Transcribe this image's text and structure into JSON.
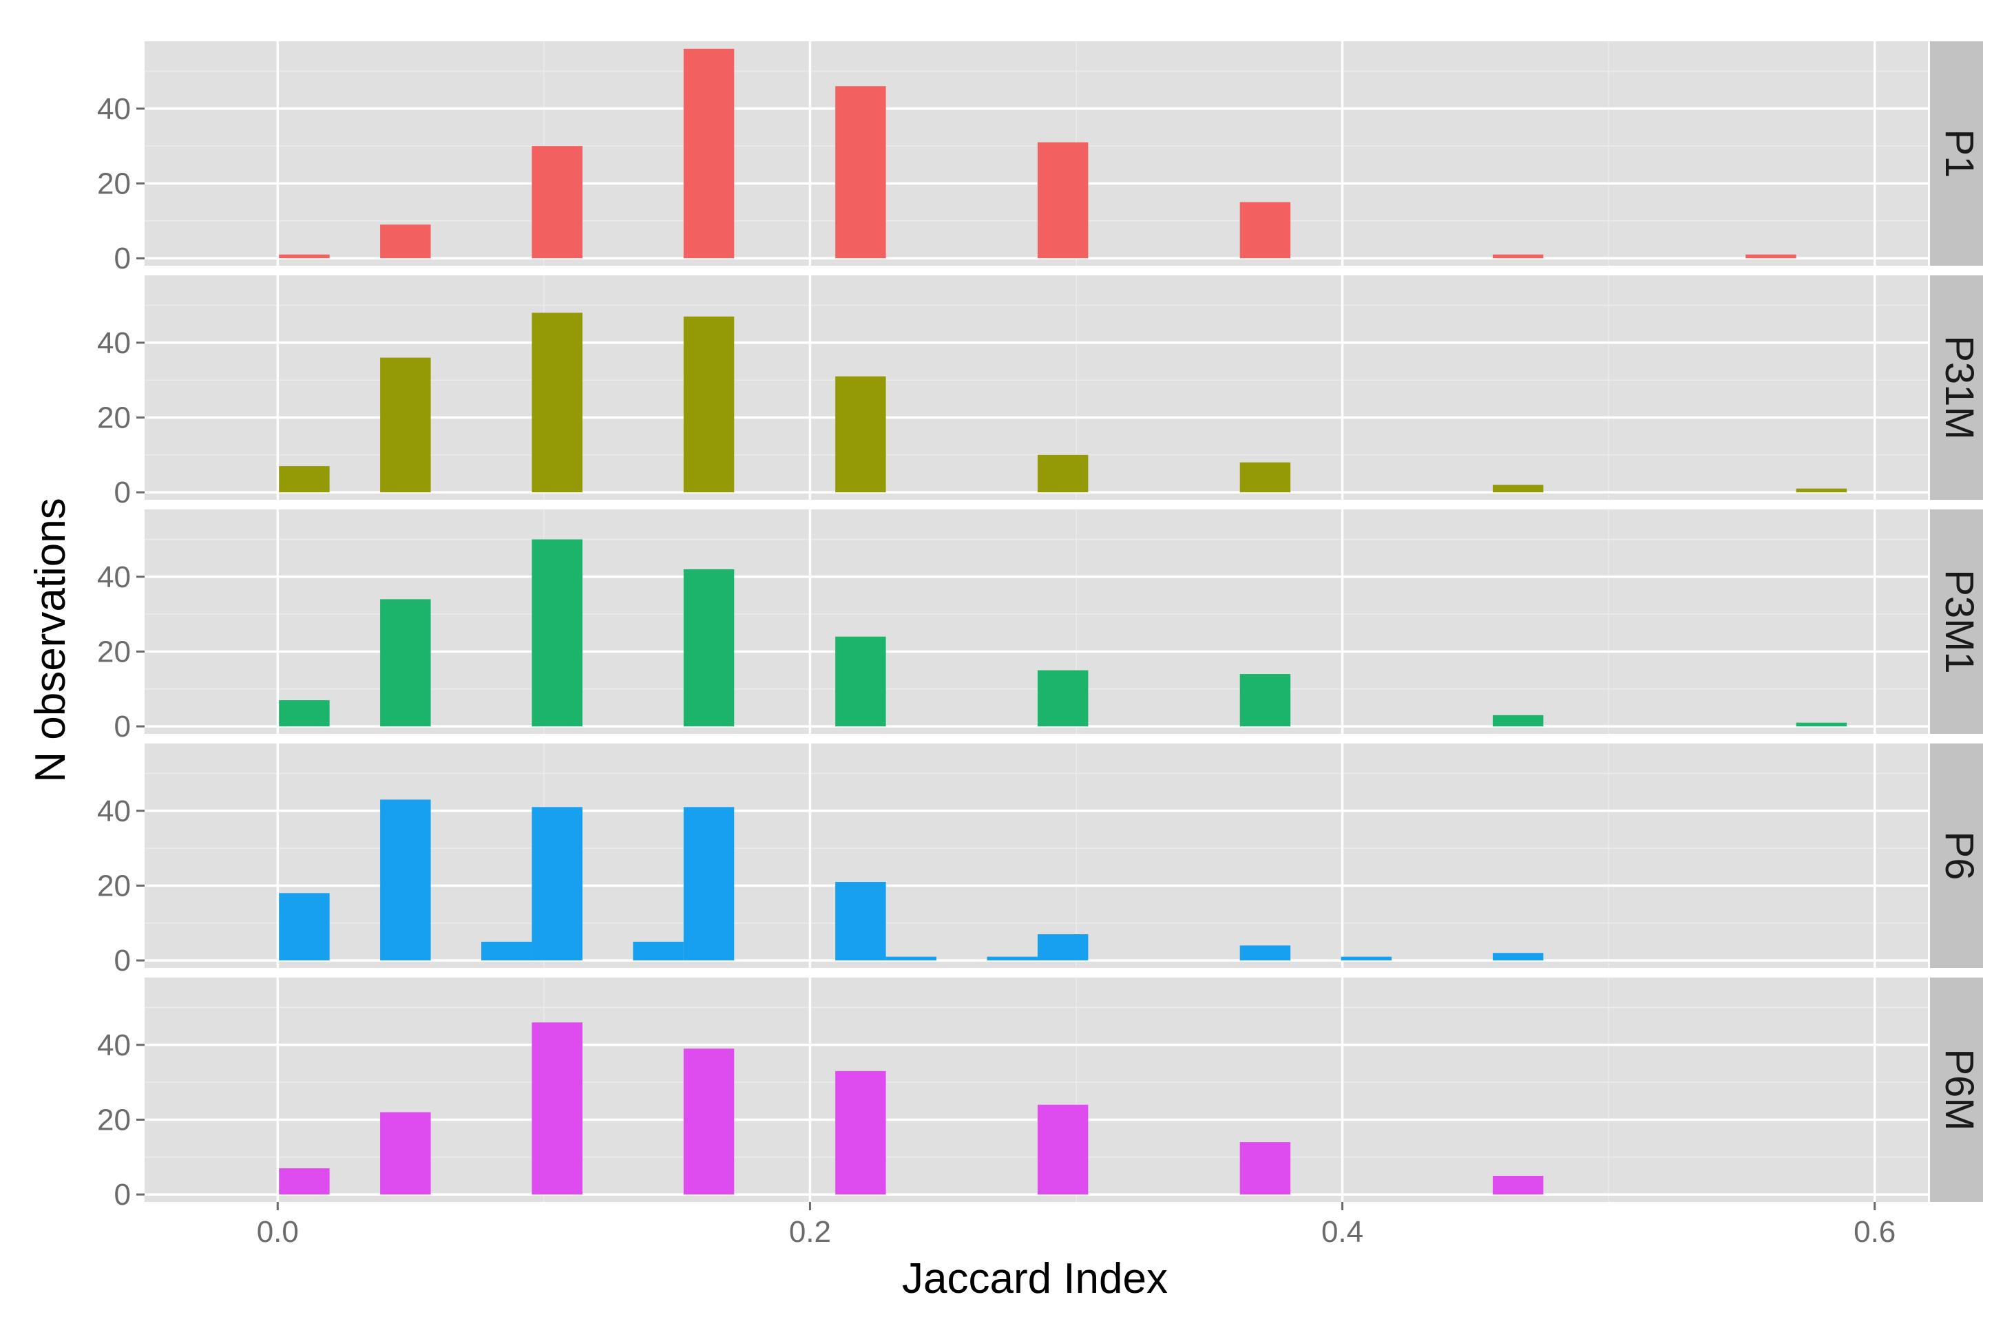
{
  "chart_data": {
    "type": "bar",
    "chart_kind": "faceted-histogram",
    "title": "",
    "xlabel": "Jaccard Index",
    "ylabel": "N observations",
    "xlim": [
      -0.05,
      0.62
    ],
    "ylim": [
      -2,
      58
    ],
    "x_ticks": [
      0.0,
      0.2,
      0.4,
      0.6
    ],
    "x_tick_labels": [
      "0.0",
      "0.2",
      "0.4",
      "0.6"
    ],
    "y_ticks": [
      0,
      20,
      40
    ],
    "y_tick_labels": [
      "0",
      "20",
      "40"
    ],
    "bar_width": 0.019,
    "grid": true,
    "legend": "none",
    "panel_background": "#e0e0e0",
    "strip_background": "#c2c2c2",
    "panels": [
      {
        "name": "P1",
        "color": "#f26060",
        "bars": [
          {
            "x": 0.01,
            "value": 1
          },
          {
            "x": 0.048,
            "value": 9
          },
          {
            "x": 0.105,
            "value": 30
          },
          {
            "x": 0.162,
            "value": 56
          },
          {
            "x": 0.219,
            "value": 46
          },
          {
            "x": 0.295,
            "value": 31
          },
          {
            "x": 0.371,
            "value": 15
          },
          {
            "x": 0.466,
            "value": 1
          },
          {
            "x": 0.561,
            "value": 1
          }
        ]
      },
      {
        "name": "P31M",
        "color": "#939a06",
        "bars": [
          {
            "x": 0.01,
            "value": 7
          },
          {
            "x": 0.048,
            "value": 36
          },
          {
            "x": 0.105,
            "value": 48
          },
          {
            "x": 0.162,
            "value": 47
          },
          {
            "x": 0.219,
            "value": 31
          },
          {
            "x": 0.295,
            "value": 10
          },
          {
            "x": 0.371,
            "value": 8
          },
          {
            "x": 0.466,
            "value": 2
          },
          {
            "x": 0.58,
            "value": 1
          }
        ]
      },
      {
        "name": "P3M1",
        "color": "#1cb46a",
        "bars": [
          {
            "x": 0.01,
            "value": 7
          },
          {
            "x": 0.048,
            "value": 34
          },
          {
            "x": 0.105,
            "value": 50
          },
          {
            "x": 0.162,
            "value": 42
          },
          {
            "x": 0.219,
            "value": 24
          },
          {
            "x": 0.295,
            "value": 15
          },
          {
            "x": 0.371,
            "value": 14
          },
          {
            "x": 0.466,
            "value": 3
          },
          {
            "x": 0.58,
            "value": 1
          }
        ]
      },
      {
        "name": "P6",
        "color": "#179ff0",
        "bars": [
          {
            "x": 0.01,
            "value": 18
          },
          {
            "x": 0.048,
            "value": 43
          },
          {
            "x": 0.086,
            "value": 5
          },
          {
            "x": 0.105,
            "value": 41
          },
          {
            "x": 0.143,
            "value": 5
          },
          {
            "x": 0.162,
            "value": 41
          },
          {
            "x": 0.219,
            "value": 21
          },
          {
            "x": 0.238,
            "value": 1
          },
          {
            "x": 0.276,
            "value": 1
          },
          {
            "x": 0.295,
            "value": 7
          },
          {
            "x": 0.371,
            "value": 4
          },
          {
            "x": 0.409,
            "value": 1
          },
          {
            "x": 0.466,
            "value": 2
          }
        ]
      },
      {
        "name": "P6M",
        "color": "#de4cef",
        "bars": [
          {
            "x": 0.01,
            "value": 7
          },
          {
            "x": 0.048,
            "value": 22
          },
          {
            "x": 0.105,
            "value": 46
          },
          {
            "x": 0.162,
            "value": 39
          },
          {
            "x": 0.219,
            "value": 33
          },
          {
            "x": 0.295,
            "value": 24
          },
          {
            "x": 0.371,
            "value": 14
          },
          {
            "x": 0.466,
            "value": 5
          }
        ]
      }
    ]
  }
}
